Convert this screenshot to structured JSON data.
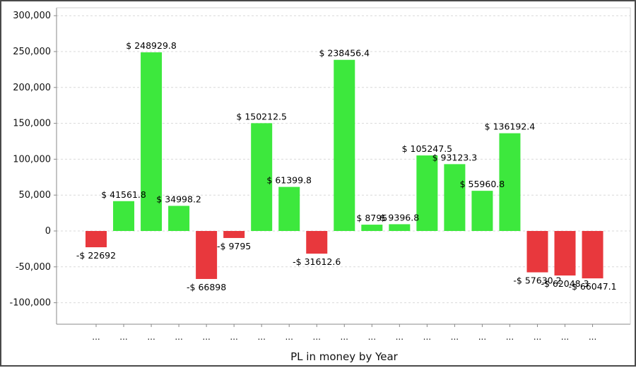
{
  "chart_data": {
    "type": "bar",
    "title": "",
    "xlabel": "PL in money by Year",
    "ylabel": "",
    "ylim": [
      -130000,
      310000
    ],
    "yticks": [
      {
        "value": 300000,
        "label": "300,000"
      },
      {
        "value": 250000,
        "label": "250,000"
      },
      {
        "value": 200000,
        "label": "200,000"
      },
      {
        "value": 150000,
        "label": "150,000"
      },
      {
        "value": 100000,
        "label": "100,000"
      },
      {
        "value": 50000,
        "label": "50,000"
      },
      {
        "value": 0,
        "label": "0"
      },
      {
        "value": -50000,
        "label": "-50,000"
      },
      {
        "value": -100000,
        "label": "-100,000"
      }
    ],
    "grid": true,
    "categories": [
      "...",
      "...",
      "...",
      "...",
      "...",
      "...",
      "...",
      "...",
      "...",
      "...",
      "...",
      "...",
      "...",
      "...",
      "...",
      "...",
      "...",
      "...",
      "..."
    ],
    "values": [
      -22692,
      41561.8,
      248929.8,
      34998.2,
      -66898,
      -9795,
      150212.5,
      61399.8,
      -31612.6,
      238456.4,
      8795,
      9396.8,
      105247.5,
      93123.3,
      55960.8,
      136192.4,
      -57630.2,
      -62048.3,
      -66047.1
    ],
    "data_labels": [
      "-$ 22692",
      "$ 41561.8",
      "$ 248929.8",
      "$ 34998.2",
      "-$ 66898",
      "-$ 9795",
      "$ 150212.5",
      "$ 61399.8",
      "-$ 31612.6",
      "$ 238456.4",
      "$ 8795",
      "$ 9396.8",
      "$ 105247.5",
      "$ 93123.3",
      "$ 55960.8",
      "$ 136192.4",
      "-$ 57630.2",
      "-$ 62048.3",
      "-$ 66047.1"
    ],
    "colors": {
      "positive": "#3de83d",
      "negative": "#e8383d",
      "grid": "#d9d9d9",
      "axis": "#888888"
    }
  }
}
